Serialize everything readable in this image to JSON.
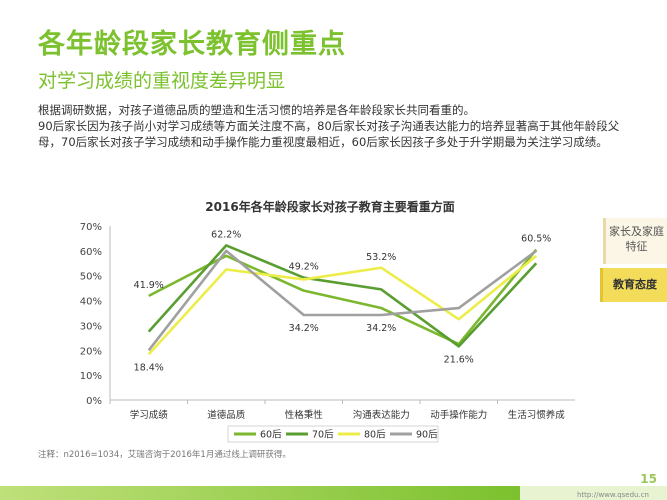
{
  "header": {
    "title": "各年龄段家长教育侧重点",
    "subtitle": "对学习成绩的重视度差异明显"
  },
  "body_text": [
    "根据调研数据，对孩子道德品质的塑造和生活习惯的培养是各年龄段家长共同看重的。",
    "90后家长因为孩子尚小对学习成绩等方面关注度不高，80后家长对孩子沟通表达能力的培养显著高于其他年龄段父母，70后家长对孩子学习成绩和动手操作能力重视度最相近，60后家长因孩子多处于升学期最为关注学习成绩。"
  ],
  "side_tabs": [
    "家长及家庭特征",
    "教育态度"
  ],
  "note": "注释：n2016=1034，艾瑞咨询于2016年1月通过线上调研获得。",
  "page_number": "15",
  "watermark": "http://www.qsedu.cn",
  "colors": {
    "accent": "#7cc12e",
    "s60": "#7cb82f",
    "s70": "#5a9e32",
    "s80": "#eded4a",
    "s90": "#a0a0a0"
  },
  "chart_data": {
    "type": "line",
    "title": "2016年各年龄段家长对孩子教育主要看重方面",
    "categories": [
      "学习成绩",
      "道德品质",
      "性格秉性",
      "沟通表达能力",
      "动手操作能力",
      "生活习惯养成"
    ],
    "ylim": [
      0,
      70
    ],
    "yticks": [
      "0%",
      "10%",
      "20%",
      "30%",
      "40%",
      "50%",
      "60%",
      "70%"
    ],
    "grid": false,
    "legend_position": "bottom",
    "series": [
      {
        "name": "60后",
        "values": [
          41.9,
          58.0,
          44.0,
          37.0,
          22.5,
          60.5
        ]
      },
      {
        "name": "70后",
        "values": [
          27.5,
          62.2,
          49.2,
          44.5,
          21.6,
          55.0
        ]
      },
      {
        "name": "80后",
        "values": [
          18.4,
          52.5,
          48.5,
          53.2,
          32.5,
          58.0
        ]
      },
      {
        "name": "90后",
        "values": [
          20.0,
          60.0,
          34.2,
          34.2,
          37.0,
          60.0
        ]
      }
    ],
    "annotations": [
      {
        "text": "41.9%",
        "category": 0,
        "value": 41.9
      },
      {
        "text": "18.4%",
        "category": 0,
        "value": 18.4
      },
      {
        "text": "62.2%",
        "category": 1,
        "value": 62.2
      },
      {
        "text": "49.2%",
        "category": 2,
        "value": 49.2
      },
      {
        "text": "34.2%",
        "category": 2,
        "value": 34.2
      },
      {
        "text": "53.2%",
        "category": 3,
        "value": 53.2
      },
      {
        "text": "34.2%",
        "category": 3,
        "value": 34.2
      },
      {
        "text": "21.6%",
        "category": 4,
        "value": 21.6
      },
      {
        "text": "60.5%",
        "category": 5,
        "value": 60.5
      }
    ]
  }
}
